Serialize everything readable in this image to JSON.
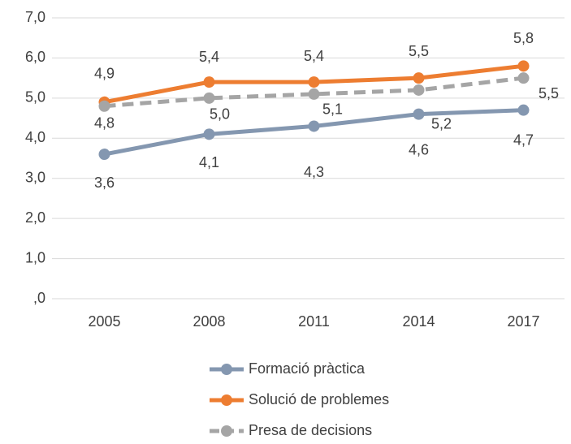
{
  "chart_data": {
    "type": "line",
    "categories": [
      "2005",
      "2008",
      "2011",
      "2014",
      "2017"
    ],
    "series": [
      {
        "name": "Formació pràctica",
        "color": "#8497b0",
        "values": [
          3.6,
          4.1,
          4.3,
          4.6,
          4.7
        ],
        "value_labels": [
          "3,6",
          "4,1",
          "4,3",
          "4,6",
          "4,7"
        ]
      },
      {
        "name": "Solució de problemes",
        "color": "#ed7d31",
        "values": [
          4.9,
          5.4,
          5.4,
          5.5,
          5.8
        ],
        "value_labels": [
          "4,9",
          "5,4",
          "5,4",
          "5,5",
          "5,8"
        ]
      },
      {
        "name": "Presa de decisions",
        "color": "#a5a5a5",
        "dashed": true,
        "values": [
          4.8,
          5.0,
          5.1,
          5.2,
          5.5
        ],
        "value_labels": [
          "4,8",
          "5,0",
          "5,1",
          "5,2",
          "5,5"
        ]
      }
    ],
    "ylim": [
      0,
      7
    ],
    "yticks": [
      {
        "value": 0,
        "label": ",0"
      },
      {
        "value": 1,
        "label": "1,0"
      },
      {
        "value": 2,
        "label": "2,0"
      },
      {
        "value": 3,
        "label": "3,0"
      },
      {
        "value": 4,
        "label": "4,0"
      },
      {
        "value": 5,
        "label": "5,0"
      },
      {
        "value": 6,
        "label": "6,0"
      },
      {
        "value": 7,
        "label": "7,0"
      }
    ],
    "grid": true,
    "legend": "bottom"
  }
}
